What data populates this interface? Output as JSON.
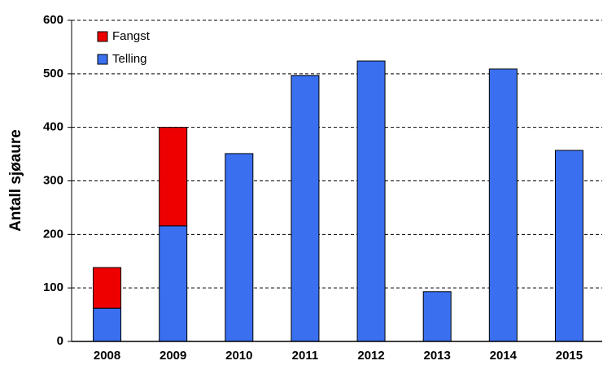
{
  "chart_data": {
    "type": "stacked_bar",
    "y_label": "Antall sjøaure",
    "categories": [
      "2008",
      "2009",
      "2010",
      "2011",
      "2012",
      "2013",
      "2014",
      "2015"
    ],
    "series": [
      {
        "name": "Telling",
        "color": "#3a6fef",
        "values": [
          62,
          216,
          351,
          497,
          524,
          93,
          509,
          357
        ]
      },
      {
        "name": "Fangst",
        "color": "#ee0000",
        "values": [
          76,
          184,
          null,
          null,
          null,
          null,
          null,
          null
        ]
      }
    ],
    "ylim": [
      0,
      600
    ],
    "yticks": [
      0,
      100,
      200,
      300,
      400,
      500,
      600
    ],
    "grid": true
  }
}
